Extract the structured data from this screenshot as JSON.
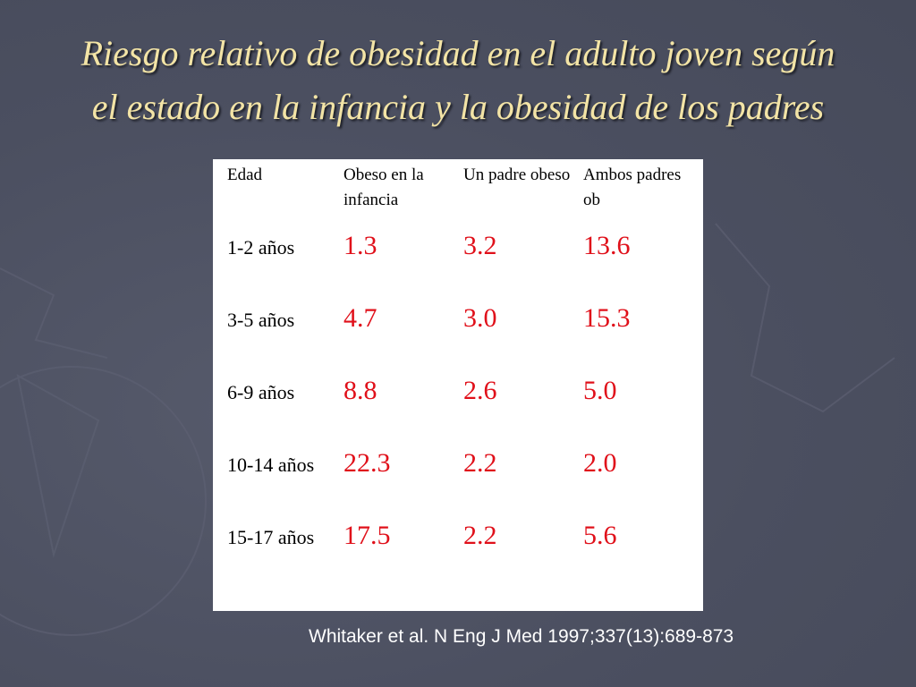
{
  "header": {
    "title_lines": [
      "Riesgo relativo de obesidad en el adulto joven según",
      "el estado en la infancia y la obesidad de los padres"
    ]
  },
  "table": {
    "columns": [
      "Edad",
      "Obeso en la infancia",
      "Un padre obeso",
      "Ambos padres ob"
    ],
    "rows": [
      [
        "1-2 años",
        "1.3",
        "3.2",
        "13.6"
      ],
      [
        "3-5 años",
        "4.7",
        "3.0",
        "15.3"
      ],
      [
        "6-9 años",
        "8.8",
        "2.6",
        "5.0"
      ],
      [
        "10-14 años",
        "22.3",
        "2.2",
        "2.0"
      ],
      [
        "15-17 años",
        "17.5",
        "2.2",
        "5.6"
      ]
    ]
  },
  "citation": "Whitaker et al. N Eng J Med 1997;337(13):689-873"
}
